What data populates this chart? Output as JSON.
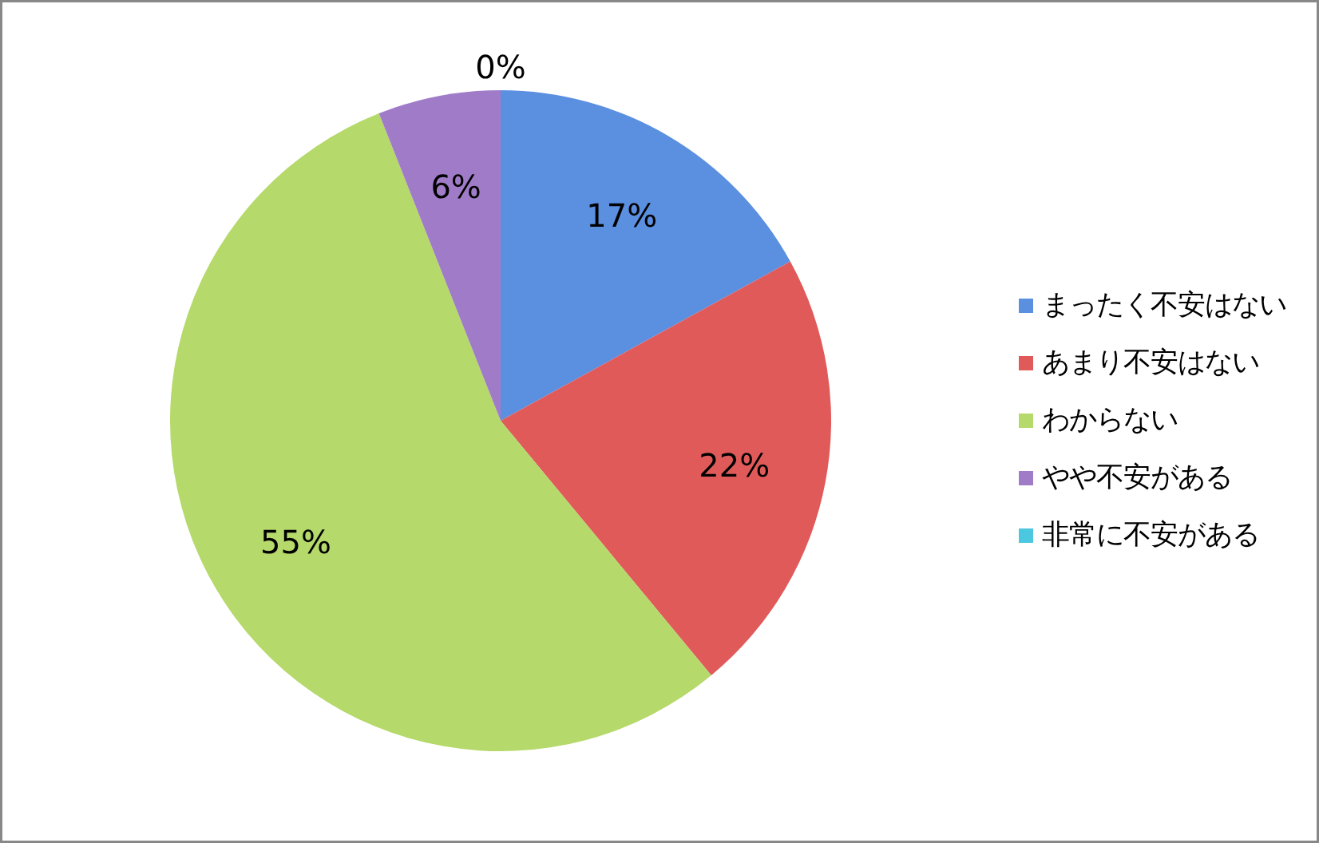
{
  "chart_data": {
    "type": "pie",
    "categories": [
      "まったく不安はない",
      "あまり不安はない",
      "わからない",
      "やや不安がある",
      "非常に不安がある"
    ],
    "values": [
      17,
      22,
      55,
      6,
      0
    ],
    "colors": [
      "#5b8fe0",
      "#e05a5a",
      "#b5d96a",
      "#a07cc8",
      "#4bc8e0"
    ],
    "value_labels": [
      "17%",
      "22%",
      "55%",
      "6%",
      "0%"
    ],
    "legend": "right"
  }
}
